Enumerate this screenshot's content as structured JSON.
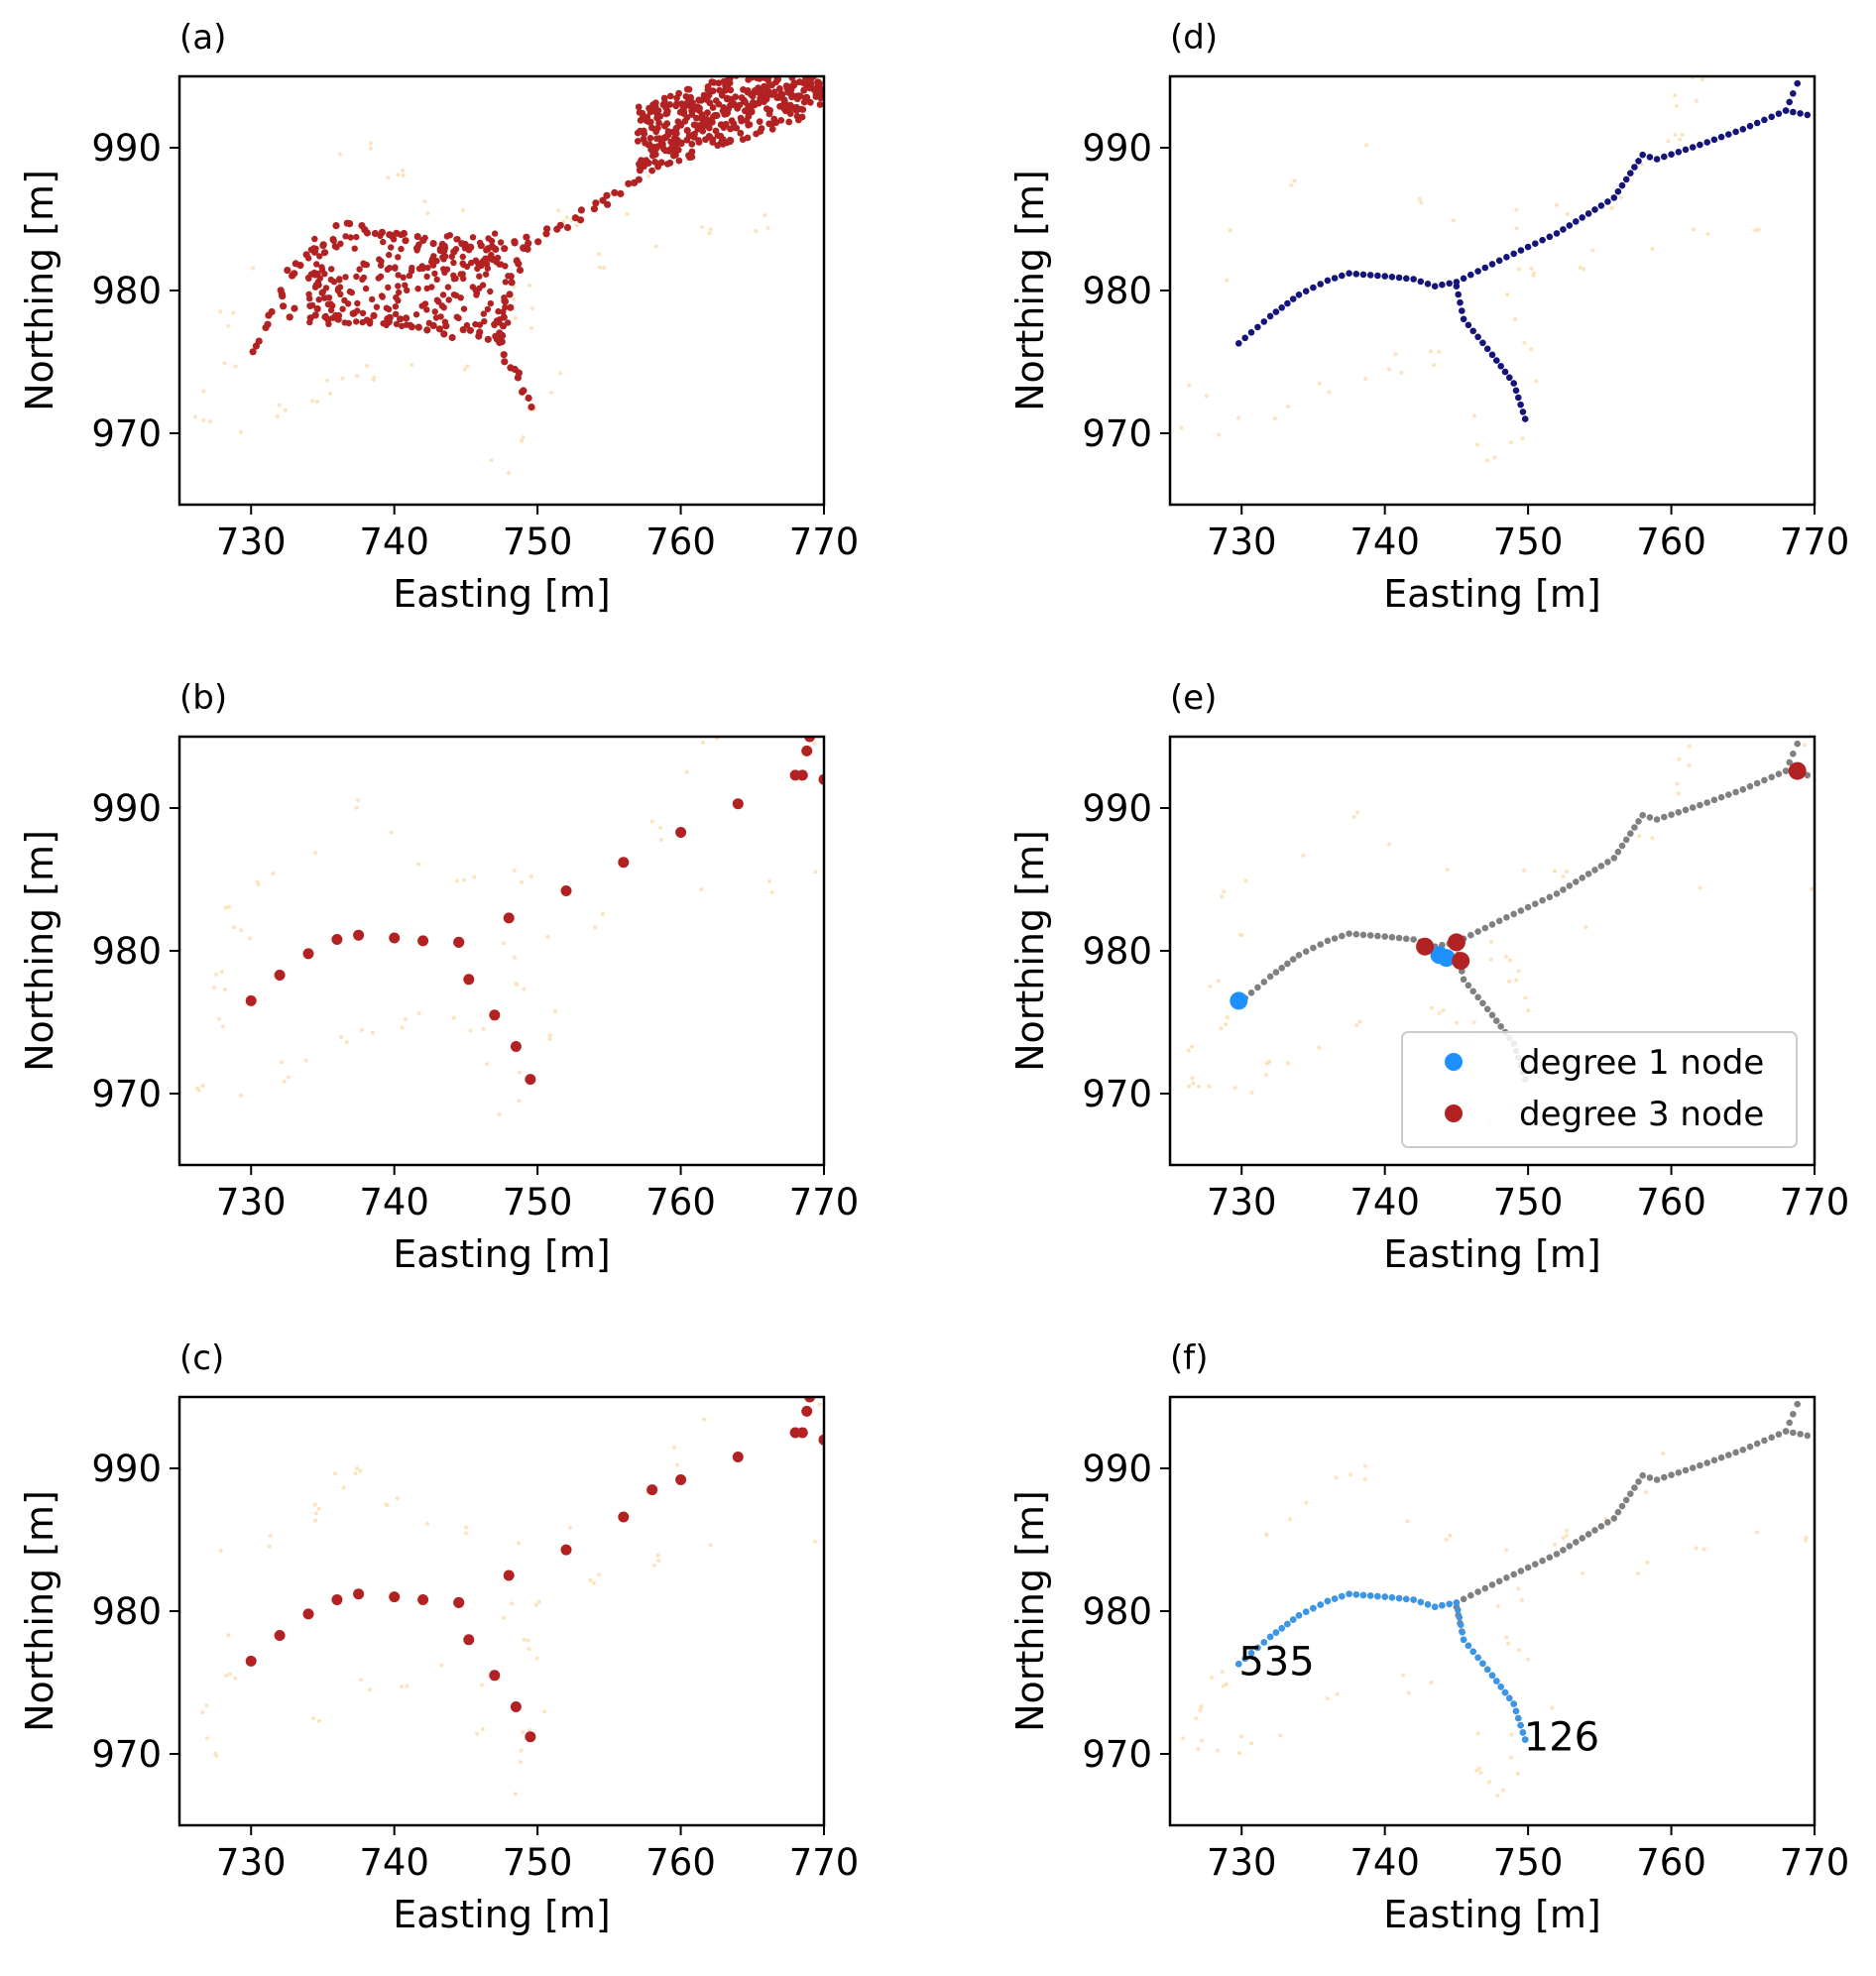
{
  "colors": {
    "background_cloud": "#fde3bb",
    "path_red": "#b22222",
    "path_navy": "#14147a",
    "path_gray": "#808080",
    "node_blue": "#1e90ff",
    "node_red": "#b22222",
    "shortest_path": "#3a96e8"
  },
  "chart_data": [
    {
      "panel_label": "(a)",
      "type": "scatter",
      "variant": "dense_point_cloud",
      "xlabel": "Easting [m]",
      "ylabel": "Northing [m]",
      "xlim": [
        725,
        770
      ],
      "ylim": [
        965,
        995
      ],
      "xticks": [
        730,
        740,
        750,
        760,
        770
      ],
      "yticks": [
        970,
        980,
        990
      ],
      "series": [
        {
          "role": "skeleton",
          "color": "#b22222",
          "x": [
            730.5,
            733,
            736.5,
            743,
            749,
            752,
            756,
            758,
            764,
            770
          ],
          "y": [
            976,
            981.5,
            984.5,
            983,
            983.2,
            984.8,
            987,
            990,
            993,
            994
          ],
          "branches": [
            {
              "x": [
                733,
                736,
                742,
                747.5
              ],
              "y": [
                978.5,
                978.3,
                977.5,
                976.5
              ]
            },
            {
              "x": [
                749,
                748,
                747.5
              ],
              "y": [
                983.2,
                980,
                976.5
              ]
            },
            {
              "x": [
                747.5,
                748.5,
                749.2
              ],
              "y": [
                976.5,
                974,
                972
              ]
            }
          ]
        }
      ]
    },
    {
      "panel_label": "(b)",
      "type": "line",
      "xlabel": "Easting [m]",
      "ylabel": "Northing [m]",
      "xlim": [
        725,
        770
      ],
      "ylim": [
        965,
        995
      ],
      "xticks": [
        730,
        740,
        750,
        760,
        770
      ],
      "yticks": [
        970,
        980,
        990
      ],
      "series": [
        {
          "role": "skeleton",
          "color": "#b22222",
          "x": [
            730,
            732,
            734,
            736,
            737.5,
            740,
            742,
            744.5,
            748,
            752,
            756,
            760,
            764,
            768,
            770
          ],
          "y": [
            976.5,
            978.3,
            979.8,
            980.8,
            981.1,
            980.9,
            980.7,
            980.6,
            982.3,
            984.2,
            986.2,
            988.3,
            990.3,
            992.3,
            992
          ],
          "branches": [
            {
              "x": [
                744.5,
                745.2,
                747,
                748.5,
                749.5
              ],
              "y": [
                980.6,
                978,
                975.5,
                973.3,
                971
              ]
            },
            {
              "x": [
                768.5,
                768.8,
                769
              ],
              "y": [
                992.3,
                994,
                995
              ]
            }
          ]
        }
      ]
    },
    {
      "panel_label": "(c)",
      "type": "line",
      "xlabel": "Easting [m]",
      "ylabel": "Northing [m]",
      "xlim": [
        725,
        770
      ],
      "ylim": [
        965,
        995
      ],
      "xticks": [
        730,
        740,
        750,
        760,
        770
      ],
      "yticks": [
        970,
        980,
        990
      ],
      "series": [
        {
          "role": "skeleton",
          "color": "#b22222",
          "x": [
            730,
            732,
            734,
            736,
            737.5,
            740,
            742,
            744.5,
            748,
            752,
            756,
            758,
            760,
            764,
            768,
            770
          ],
          "y": [
            976.5,
            978.3,
            979.8,
            980.8,
            981.2,
            981,
            980.8,
            980.6,
            982.5,
            984.3,
            986.6,
            988.5,
            989.2,
            990.8,
            992.5,
            992
          ],
          "branches": [
            {
              "x": [
                744.5,
                745.2,
                747,
                748.5,
                749.5
              ],
              "y": [
                980.6,
                978,
                975.5,
                973.3,
                971.2
              ]
            },
            {
              "x": [
                768.5,
                768.8,
                769
              ],
              "y": [
                992.5,
                994,
                995
              ]
            }
          ]
        }
      ]
    },
    {
      "panel_label": "(d)",
      "type": "scatter",
      "xlabel": "Easting [m]",
      "ylabel": "Northing [m]",
      "xlim": [
        725,
        770
      ],
      "ylim": [
        965,
        995
      ],
      "xticks": [
        730,
        740,
        750,
        760,
        770
      ],
      "yticks": [
        970,
        980,
        990
      ],
      "series": [
        {
          "role": "skeleton",
          "color": "#14147a",
          "x": [
            729.8,
            732,
            734,
            736,
            737.5,
            740,
            742,
            743.5,
            745,
            748,
            752,
            756,
            758,
            759,
            762,
            765,
            768,
            769.5
          ],
          "y": [
            976.3,
            978.2,
            979.7,
            980.7,
            981.2,
            981,
            980.8,
            980.3,
            980.6,
            982.1,
            984,
            986.5,
            989.5,
            989.2,
            990.2,
            991.3,
            992.6,
            992.3
          ],
          "branches": [
            {
              "x": [
                745,
                745.5,
                747.5,
                749,
                749.8
              ],
              "y": [
                980.3,
                978,
                975.5,
                973.5,
                971
              ]
            },
            {
              "x": [
                768,
                768.5,
                768.8
              ],
              "y": [
                992.6,
                993.8,
                994.5
              ]
            }
          ]
        }
      ]
    },
    {
      "panel_label": "(e)",
      "type": "scatter",
      "xlabel": "Easting [m]",
      "ylabel": "Northing [m]",
      "xlim": [
        725,
        770
      ],
      "ylim": [
        965,
        995
      ],
      "xticks": [
        730,
        740,
        750,
        760,
        770
      ],
      "yticks": [
        970,
        980,
        990
      ],
      "series": [
        {
          "role": "skeleton",
          "color": "#808080",
          "x": [
            729.8,
            732,
            734,
            736,
            737.5,
            740,
            742,
            743.5,
            745,
            748,
            752,
            756,
            758,
            759,
            762,
            765,
            768,
            769.5
          ],
          "y": [
            976.3,
            978.2,
            979.7,
            980.7,
            981.2,
            981,
            980.8,
            980.3,
            980.6,
            982.1,
            984,
            986.5,
            989.5,
            989.2,
            990.2,
            991.3,
            992.6,
            992.3
          ],
          "branches": [
            {
              "x": [
                745,
                745.5,
                747.5,
                749,
                749.8
              ],
              "y": [
                980.3,
                978,
                975.5,
                973.5,
                971
              ]
            },
            {
              "x": [
                768,
                768.5,
                768.8
              ],
              "y": [
                992.6,
                993.8,
                994.5
              ]
            }
          ]
        },
        {
          "name": "degree 1 node",
          "role": "nodes",
          "color": "#1e90ff",
          "x": [
            729.8,
            743.8,
            744.3
          ],
          "y": [
            976.5,
            979.7,
            979.5
          ]
        },
        {
          "name": "degree 3 node",
          "role": "nodes",
          "color": "#b22222",
          "x": [
            742.8,
            745.0,
            745.3,
            768.8
          ],
          "y": [
            980.3,
            980.6,
            979.3,
            992.6
          ]
        }
      ],
      "legend": {
        "loc": "lower right",
        "entries": [
          "degree 1 node",
          "degree 3 node"
        ]
      }
    },
    {
      "panel_label": "(f)",
      "type": "scatter",
      "xlabel": "Easting [m]",
      "ylabel": "Northing [m]",
      "xlim": [
        725,
        770
      ],
      "ylim": [
        965,
        995
      ],
      "xticks": [
        730,
        740,
        750,
        760,
        770
      ],
      "yticks": [
        970,
        980,
        990
      ],
      "series": [
        {
          "role": "skeleton",
          "color": "#808080",
          "x": [
            729.8,
            732,
            734,
            736,
            737.5,
            740,
            742,
            743.5,
            745,
            748,
            752,
            756,
            758,
            759,
            762,
            765,
            768,
            769.5
          ],
          "y": [
            976.3,
            978.2,
            979.7,
            980.7,
            981.2,
            981,
            980.8,
            980.3,
            980.6,
            982.1,
            984,
            986.5,
            989.5,
            989.2,
            990.2,
            991.3,
            992.6,
            992.3
          ],
          "branches": [
            {
              "x": [
                745,
                745.5,
                747.5,
                749,
                749.8
              ],
              "y": [
                980.3,
                978,
                975.5,
                973.5,
                971
              ]
            },
            {
              "x": [
                768,
                768.5,
                768.8
              ],
              "y": [
                992.6,
                993.8,
                994.5
              ]
            }
          ]
        },
        {
          "role": "shortest_path",
          "color": "#3a96e8",
          "x": [
            729.8,
            732,
            734,
            736,
            737.5,
            740,
            742,
            743.5,
            745,
            745.5,
            747.5,
            749,
            749.8
          ],
          "y": [
            976.3,
            978.2,
            979.7,
            980.7,
            981.2,
            981,
            980.8,
            980.3,
            980.6,
            978,
            975.5,
            973.5,
            971
          ]
        }
      ],
      "annotations": [
        {
          "text": "535",
          "x": 729.8,
          "y": 976.5
        },
        {
          "text": "126",
          "x": 749.7,
          "y": 971.2
        }
      ]
    }
  ]
}
